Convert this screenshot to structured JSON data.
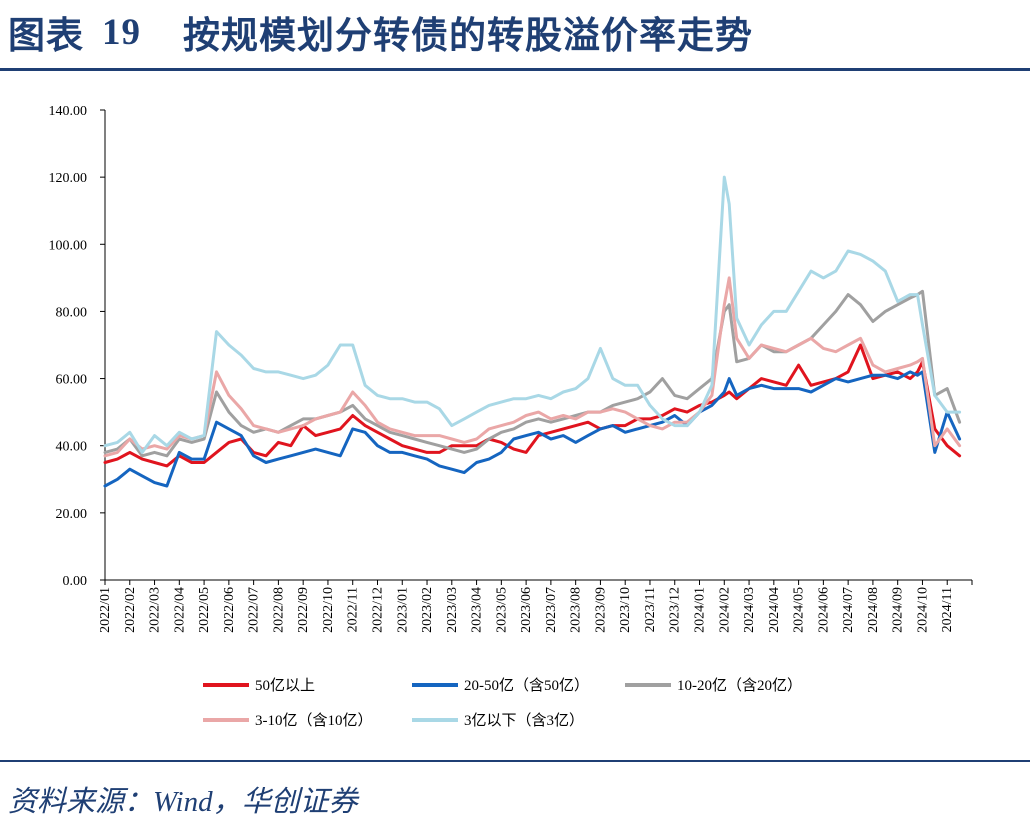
{
  "figure": {
    "label": "图表",
    "number": "19",
    "title": "按规模划分转债的转股溢价率走势",
    "source": "资料来源：Wind，华创证券"
  },
  "chart_data": {
    "type": "line",
    "title": "按规模划分转债的转股溢价率走势",
    "xlabel": "",
    "ylabel": "",
    "ylim": [
      0,
      140
    ],
    "yticks": [
      "0.00",
      "20.00",
      "40.00",
      "60.00",
      "80.00",
      "100.00",
      "120.00",
      "140.00"
    ],
    "x_tick_labels": [
      "2022/01",
      "2022/02",
      "2022/03",
      "2022/04",
      "2022/05",
      "2022/06",
      "2022/07",
      "2022/08",
      "2022/09",
      "2022/10",
      "2022/11",
      "2022/12",
      "2023/01",
      "2023/02",
      "2023/03",
      "2023/04",
      "2023/05",
      "2023/06",
      "2023/07",
      "2023/08",
      "2023/09",
      "2023/10",
      "2023/11",
      "2023/12",
      "2024/01",
      "2024/02",
      "2024/03",
      "2024/04",
      "2024/05",
      "2024/06",
      "2024/07",
      "2024/08",
      "2024/09",
      "2024/10",
      "2024/11"
    ],
    "grid": false,
    "legend_position": "bottom",
    "x_unit": "month index (0 = 2022/01)",
    "x": [
      0,
      0.5,
      1,
      1.5,
      2,
      2.5,
      3,
      3.5,
      4,
      4.5,
      5,
      5.5,
      6,
      6.5,
      7,
      7.5,
      8,
      8.5,
      9,
      9.5,
      10,
      10.5,
      11,
      11.5,
      12,
      12.5,
      13,
      13.5,
      14,
      14.5,
      15,
      15.5,
      16,
      16.5,
      17,
      17.5,
      18,
      18.5,
      19,
      19.5,
      20,
      20.5,
      21,
      21.5,
      22,
      22.5,
      23,
      23.5,
      24,
      24.5,
      25,
      25.2,
      25.5,
      26,
      26.5,
      27,
      27.5,
      28,
      28.5,
      29,
      29.5,
      30,
      30.5,
      31,
      31.5,
      32,
      32.5,
      32.8,
      33,
      33.5,
      34,
      34.5
    ],
    "series": [
      {
        "name": "50亿以上",
        "color": "#e0141e",
        "values": [
          35,
          36,
          38,
          36,
          35,
          34,
          37,
          35,
          35,
          38,
          41,
          42,
          38,
          37,
          41,
          40,
          46,
          43,
          44,
          45,
          49,
          46,
          44,
          42,
          40,
          39,
          38,
          38,
          40,
          40,
          40,
          42,
          41,
          39,
          38,
          43,
          44,
          45,
          46,
          47,
          45,
          46,
          46,
          48,
          48,
          49,
          51,
          50,
          52,
          53,
          55,
          56,
          54,
          57,
          60,
          59,
          58,
          64,
          58,
          59,
          60,
          62,
          70,
          60,
          61,
          62,
          60,
          62,
          65,
          45,
          40,
          37
        ]
      },
      {
        "name": "20-50亿（含50亿）",
        "color": "#1565c0",
        "values": [
          28,
          30,
          33,
          31,
          29,
          28,
          38,
          36,
          36,
          47,
          45,
          43,
          37,
          35,
          36,
          37,
          38,
          39,
          38,
          37,
          45,
          44,
          40,
          38,
          38,
          37,
          36,
          34,
          33,
          32,
          35,
          36,
          38,
          42,
          43,
          44,
          42,
          43,
          41,
          43,
          45,
          46,
          44,
          45,
          46,
          47,
          49,
          46,
          50,
          52,
          56,
          60,
          55,
          57,
          58,
          57,
          57,
          57,
          56,
          58,
          60,
          59,
          60,
          61,
          61,
          60,
          62,
          61,
          62,
          38,
          50,
          42
        ]
      },
      {
        "name": "10-20亿（含20亿）",
        "color": "#a0a0a0",
        "values": [
          38,
          39,
          42,
          37,
          38,
          37,
          42,
          41,
          42,
          56,
          50,
          46,
          44,
          45,
          44,
          46,
          48,
          48,
          49,
          50,
          52,
          48,
          46,
          44,
          43,
          42,
          41,
          40,
          39,
          38,
          39,
          42,
          44,
          45,
          47,
          48,
          47,
          48,
          49,
          50,
          50,
          52,
          53,
          54,
          56,
          60,
          55,
          54,
          57,
          60,
          80,
          82,
          65,
          66,
          70,
          68,
          68,
          70,
          72,
          76,
          80,
          85,
          82,
          77,
          80,
          82,
          84,
          85,
          86,
          55,
          57,
          47
        ]
      },
      {
        "name": "3-10亿（含10亿）",
        "color": "#eaa7a7",
        "values": [
          37,
          38,
          42,
          39,
          40,
          39,
          43,
          42,
          43,
          62,
          55,
          51,
          46,
          45,
          44,
          45,
          46,
          48,
          49,
          50,
          56,
          52,
          47,
          45,
          44,
          43,
          43,
          43,
          42,
          41,
          42,
          45,
          46,
          47,
          49,
          50,
          48,
          49,
          48,
          50,
          50,
          51,
          50,
          48,
          46,
          45,
          47,
          47,
          50,
          55,
          82,
          90,
          72,
          66,
          70,
          69,
          68,
          70,
          72,
          69,
          68,
          70,
          72,
          64,
          62,
          63,
          64,
          65,
          66,
          40,
          45,
          40
        ]
      },
      {
        "name": "3亿以下（含3亿）",
        "color": "#a9d8e6",
        "values": [
          40,
          41,
          44,
          38,
          43,
          40,
          44,
          42,
          43,
          74,
          70,
          67,
          63,
          62,
          62,
          61,
          60,
          61,
          64,
          70,
          70,
          58,
          55,
          54,
          54,
          53,
          53,
          51,
          46,
          48,
          50,
          52,
          53,
          54,
          54,
          55,
          54,
          56,
          57,
          60,
          69,
          60,
          58,
          58,
          52,
          48,
          46,
          46,
          50,
          58,
          120,
          112,
          78,
          70,
          76,
          80,
          80,
          86,
          92,
          90,
          92,
          98,
          97,
          95,
          92,
          83,
          85,
          85,
          76,
          55,
          50,
          50
        ]
      }
    ]
  }
}
